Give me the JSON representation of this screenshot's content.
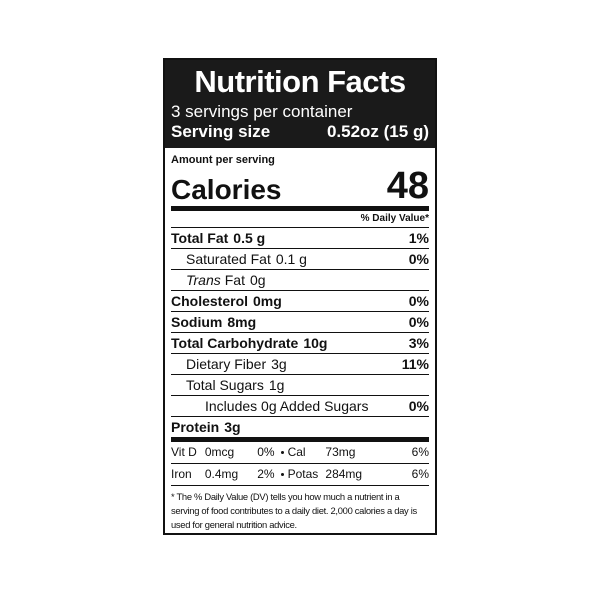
{
  "header": {
    "title": "Nutrition Facts",
    "servings": "3 servings per container",
    "serving_size_label": "Serving size",
    "serving_size_value": "0.52oz (15 g)"
  },
  "calories": {
    "amount_per_serving": "Amount per serving",
    "label": "Calories",
    "value": "48"
  },
  "dv_header": "% Daily Value*",
  "nutrients": [
    {
      "name": "Total Fat",
      "amount": "0.5 g",
      "dv": "1%"
    },
    {
      "name": "Saturated Fat",
      "amount": "0.1 g",
      "dv": "0%"
    },
    {
      "name_italic": "Trans",
      "name": "Fat",
      "amount": "0g"
    },
    {
      "name": "Cholesterol",
      "amount": "0mg",
      "dv": "0%"
    },
    {
      "name": "Sodium",
      "amount": "8mg",
      "dv": "0%"
    },
    {
      "name": "Total Carbohydrate",
      "amount": "10g",
      "dv": "3%"
    },
    {
      "name": "Dietary Fiber",
      "amount": "3g",
      "dv": "11%"
    },
    {
      "name": "Total Sugars",
      "amount": "1g"
    },
    {
      "name": "Includes 0g Added Sugars",
      "dv": "0%"
    },
    {
      "name": "Protein",
      "amount": "3g"
    }
  ],
  "vitamins": [
    {
      "left": {
        "name": "Vit D",
        "amount": "0mcg",
        "dv": "0%"
      },
      "right": {
        "name": "Cal",
        "amount": "73mg",
        "dv": "6%"
      }
    },
    {
      "left": {
        "name": "Iron",
        "amount": "0.4mg",
        "dv": "2%"
      },
      "right": {
        "name": "Potas",
        "amount": "284mg",
        "dv": "6%"
      }
    }
  ],
  "footnote": "* The % Daily Value (DV) tells you how much a nutrient in a serving of food contributes to a daily diet. 2,000 calories a day is used for general nutrition advice."
}
